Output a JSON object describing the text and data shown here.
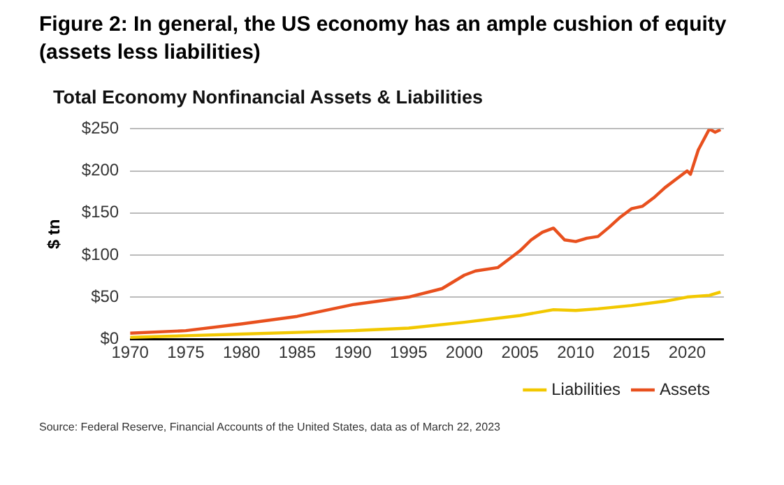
{
  "chart_data": {
    "type": "line",
    "title": "Figure 2: In general, the US economy has an ample cushion of equity (assets less liabilities)",
    "subtitle": "Total Economy Nonfinancial Assets & Liabilities",
    "ylabel": "$ tn",
    "xlim": [
      1970,
      2023.3
    ],
    "xticks": [
      1970,
      1975,
      1980,
      1985,
      1990,
      1995,
      2000,
      2005,
      2010,
      2015,
      2020
    ],
    "ylim": [
      0,
      250
    ],
    "yticks": [
      {
        "value": 0,
        "label": "$0"
      },
      {
        "value": 50,
        "label": "$50"
      },
      {
        "value": 100,
        "label": "$100"
      },
      {
        "value": 150,
        "label": "$150"
      },
      {
        "value": 200,
        "label": "$200"
      },
      {
        "value": 250,
        "label": "$250"
      }
    ],
    "grid": "y",
    "legend": "bottom right",
    "marker": "none",
    "line_style": "solid",
    "series": [
      {
        "name": "Liabilities",
        "color": "#f2c800",
        "x": [
          1970,
          1975,
          1980,
          1985,
          1990,
          1995,
          2000,
          2005,
          2008,
          2010,
          2012,
          2015,
          2018,
          2020,
          2022,
          2023
        ],
        "values": [
          2,
          4,
          6,
          8,
          10,
          13,
          20,
          28,
          35,
          34,
          36,
          40,
          45,
          50,
          52,
          56
        ]
      },
      {
        "name": "Assets",
        "color": "#e8501e",
        "x": [
          1970,
          1975,
          1980,
          1985,
          1990,
          1995,
          1998,
          2000,
          2001,
          2003,
          2005,
          2006,
          2007,
          2008,
          2009,
          2010,
          2011,
          2012,
          2013,
          2014,
          2015,
          2016,
          2017,
          2018,
          2019,
          2020,
          2020.3,
          2021,
          2022,
          2022.5,
          2023
        ],
        "values": [
          7,
          10,
          18,
          27,
          41,
          50,
          60,
          76,
          81,
          85,
          105,
          118,
          127,
          132,
          118,
          116,
          120,
          122,
          133,
          145,
          155,
          158,
          168,
          180,
          190,
          200,
          196,
          225,
          250,
          246,
          249
        ]
      }
    ],
    "annotations": [
      "Source: Federal Reserve, Financial Accounts of the United States, data as of March 22, 2023"
    ]
  }
}
